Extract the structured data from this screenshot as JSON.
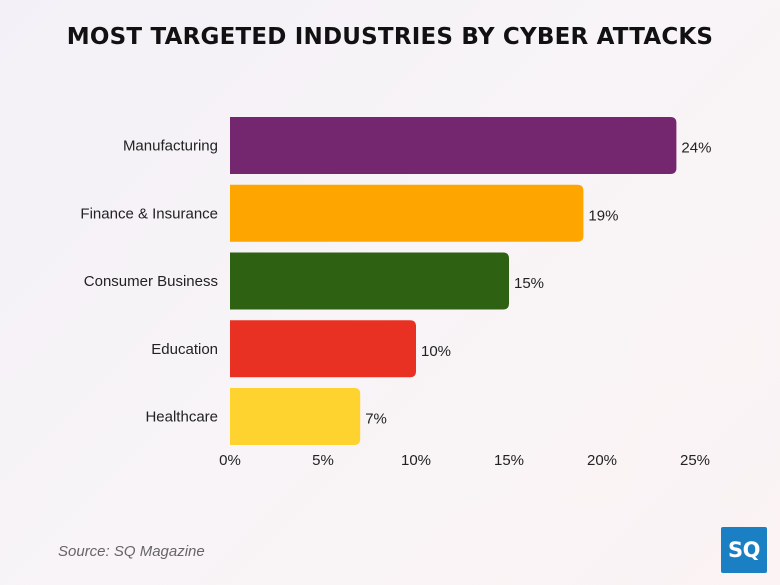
{
  "chart_data": {
    "type": "bar",
    "orientation": "horizontal",
    "title": "MOST TARGETED INDUSTRIES BY CYBER ATTACKS",
    "categories": [
      "Manufacturing",
      "Finance & Insurance",
      "Consumer Business",
      "Education",
      "Healthcare"
    ],
    "values": [
      24,
      19,
      15,
      10,
      7
    ],
    "value_labels": [
      "24%",
      "19%",
      "15%",
      "10%",
      "7%"
    ],
    "colors": [
      "#74266f",
      "#fea500",
      "#2f6112",
      "#e83122",
      "#fed22f"
    ],
    "xlim": [
      0,
      25
    ],
    "xticks": [
      0,
      5,
      10,
      15,
      20,
      25
    ],
    "xtick_labels": [
      "0%",
      "5%",
      "10%",
      "15%",
      "20%",
      "25%"
    ],
    "xlabel": "",
    "ylabel": "",
    "grid": false,
    "legend": "none"
  },
  "footer": {
    "source": "Source: SQ Magazine",
    "logo_text": "SQ"
  }
}
